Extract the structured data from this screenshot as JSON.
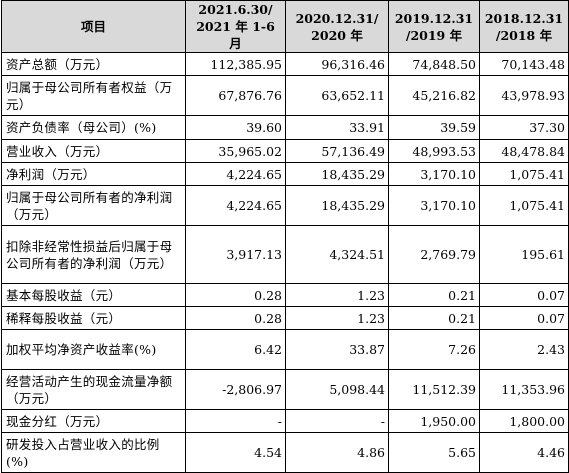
{
  "table": {
    "header": {
      "item": "项目",
      "cols": [
        {
          "line1": "2021.6.30/",
          "line2": "2021 年 1-6 月"
        },
        {
          "line1": "2020.12.31/",
          "line2": "2020 年"
        },
        {
          "line1": "2019.12.31",
          "line2": "/2019 年"
        },
        {
          "line1": "2018.12.31",
          "line2": "/2018 年"
        }
      ]
    },
    "rows": [
      {
        "label": "资产总额（万元）",
        "values": [
          "112,385.95",
          "96,316.46",
          "74,848.50",
          "70,143.48"
        ]
      },
      {
        "label": "归属于母公司所有者权益（万元）",
        "values": [
          "67,876.76",
          "63,652.11",
          "45,216.82",
          "43,978.93"
        ]
      },
      {
        "label": "资产负债率（母公司）(%)",
        "values": [
          "39.60",
          "33.91",
          "39.59",
          "37.30"
        ]
      },
      {
        "label": "营业收入（万元）",
        "values": [
          "35,965.02",
          "57,136.49",
          "48,993.53",
          "48,478.84"
        ]
      },
      {
        "label": "净利润（万元）",
        "values": [
          "4,224.65",
          "18,435.29",
          "3,170.10",
          "1,075.41"
        ]
      },
      {
        "label": "归属于母公司所有者的净利润（万元）",
        "values": [
          "4,224.65",
          "18,435.29",
          "3,170.10",
          "1,075.41"
        ]
      },
      {
        "label": "扣除非经常性损益后归属于母公司所有者的净利润（万元）",
        "values": [
          "3,917.13",
          "4,324.51",
          "2,769.79",
          "195.61"
        ]
      },
      {
        "label": "基本每股收益（元）",
        "values": [
          "0.28",
          "1.23",
          "0.21",
          "0.07"
        ]
      },
      {
        "label": "稀释每股收益（元）",
        "values": [
          "0.28",
          "1.23",
          "0.21",
          "0.07"
        ]
      },
      {
        "label": "加权平均净资产收益率(%)",
        "values": [
          "6.42",
          "33.87",
          "7.26",
          "2.43"
        ]
      },
      {
        "label": "经营活动产生的现金流量净额（万元）",
        "values": [
          "-2,806.97",
          "5,098.44",
          "11,512.39",
          "11,353.96"
        ]
      },
      {
        "label": "现金分红（万元）",
        "values": [
          "-",
          "-",
          "1,950.00",
          "1,800.00"
        ]
      },
      {
        "label": "研发投入占营业收入的比例(%)",
        "values": [
          "4.54",
          "4.86",
          "5.65",
          "4.46"
        ]
      }
    ]
  }
}
